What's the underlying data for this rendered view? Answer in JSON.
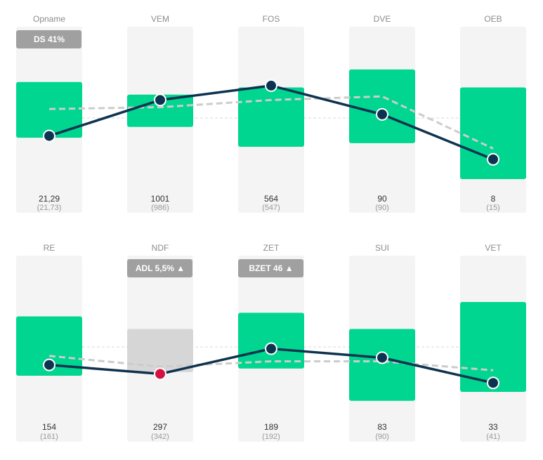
{
  "chart_data": [
    {
      "type": "line",
      "x": [
        "Opname",
        "VEM",
        "FOS",
        "DVE",
        "OEB"
      ],
      "series": [
        {
          "values": [
            21.29,
            1001,
            564,
            90,
            8
          ],
          "value_labels": [
            "21,29",
            "1001",
            "564",
            "90",
            "8"
          ],
          "reference_labels": [
            "(21,73)",
            "(986)",
            "(547)",
            "(90)",
            "(15)"
          ],
          "point_levels": [
            0.4,
            0.6,
            0.68,
            0.52,
            0.27
          ],
          "reference_levels": [
            0.55,
            0.56,
            0.6,
            0.62,
            0.33
          ],
          "band_low": [
            0.39,
            0.45,
            0.34,
            0.36,
            0.16
          ],
          "band_high": [
            0.7,
            0.63,
            0.67,
            0.77,
            0.67
          ]
        }
      ],
      "badges": [
        {
          "index": 0,
          "text": "DS 41%"
        }
      ],
      "point_colors": [
        "#0e3350",
        "#0e3350",
        "#0e3350",
        "#0e3350",
        "#0e3350"
      ],
      "band_colors": [
        "#00d68f",
        "#00d68f",
        "#00d68f",
        "#00d68f",
        "#00d68f"
      ],
      "baseline_level": 0.5
    },
    {
      "type": "line",
      "x": [
        "RE",
        "NDF",
        "ZET",
        "SUI",
        "VET"
      ],
      "series": [
        {
          "values": [
            154,
            297,
            189,
            83,
            33
          ],
          "value_labels": [
            "154",
            "297",
            "189",
            "83",
            "33"
          ],
          "reference_labels": [
            "(161)",
            "(342)",
            "(192)",
            "(90)",
            "(41)"
          ],
          "point_levels": [
            0.4,
            0.35,
            0.49,
            0.44,
            0.3
          ],
          "reference_levels": [
            0.45,
            0.39,
            0.42,
            0.42,
            0.37
          ],
          "band_low": [
            0.34,
            0.36,
            0.38,
            0.2,
            0.25
          ],
          "band_high": [
            0.67,
            0.6,
            0.69,
            0.6,
            0.75
          ]
        }
      ],
      "badges": [
        {
          "index": 1,
          "text": "ADL 5,5% ▲"
        },
        {
          "index": 2,
          "text": "BZET 46 ▲"
        }
      ],
      "point_colors": [
        "#0e3350",
        "#d3123f",
        "#0e3350",
        "#0e3350",
        "#0e3350"
      ],
      "band_colors": [
        "#00d68f",
        "#d6d6d6",
        "#00d68f",
        "#00d68f",
        "#00d68f"
      ],
      "baseline_level": 0.5
    }
  ],
  "colors": {
    "column_bg": "#f4f4f4",
    "line": "#0e3350",
    "reference_line": "#cccccc",
    "baseline": "#d9d9d9",
    "header_text": "#8c8c8c",
    "value_text": "#333333",
    "reference_text": "#999999",
    "badge_bg": "#a0a0a0",
    "badge_text": "#ffffff"
  }
}
